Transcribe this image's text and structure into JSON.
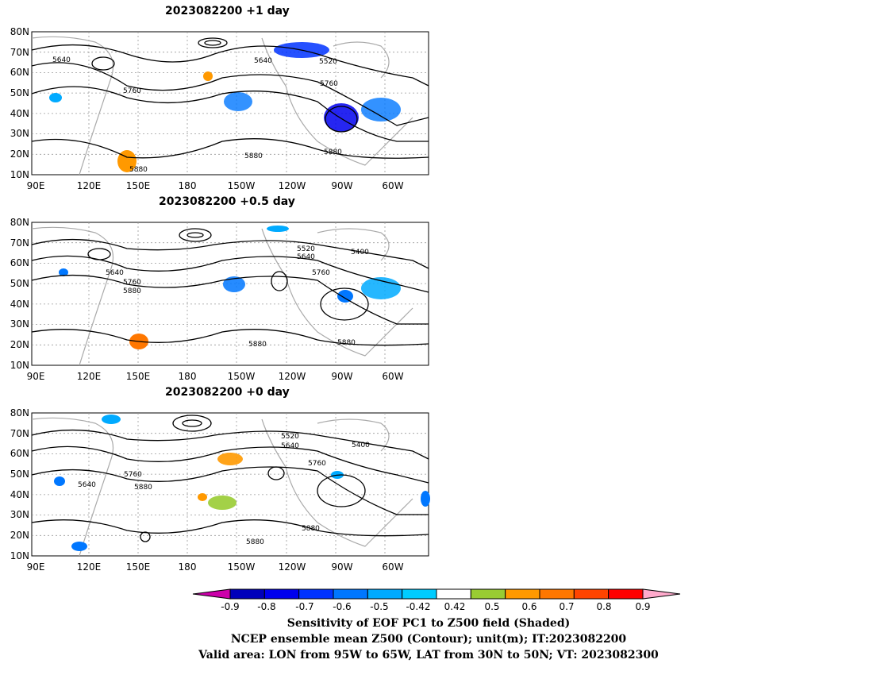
{
  "panels": [
    {
      "title": "2023082200  +1 day",
      "contour_labels": [
        "5640",
        "5640",
        "5520",
        "5760",
        "5760",
        "5880",
        "5880",
        "5880"
      ]
    },
    {
      "title": "2023082200  +0.5 day",
      "contour_labels": [
        "5520",
        "5640",
        "5400",
        "5640",
        "5760",
        "5880",
        "5760",
        "5880",
        "5880"
      ]
    },
    {
      "title": "2023082200  +0 day",
      "contour_labels": [
        "5520",
        "5640",
        "5400",
        "5760",
        "5640",
        "5760",
        "5880",
        "5880",
        "5880"
      ]
    }
  ],
  "axes": {
    "y_ticks": [
      "80N",
      "70N",
      "60N",
      "50N",
      "40N",
      "30N",
      "20N",
      "10N"
    ],
    "x_ticks": [
      "90E",
      "120E",
      "150E",
      "180",
      "150W",
      "120W",
      "90W",
      "60W"
    ]
  },
  "colorbar": {
    "ticks": [
      "-0.9",
      "-0.8",
      "-0.7",
      "-0.6",
      "-0.5",
      "-0.42",
      "0.42",
      "0.5",
      "0.6",
      "0.7",
      "0.8",
      "0.9"
    ],
    "colors": [
      "#cc00aa",
      "#0000bb",
      "#0000ee",
      "#0033ff",
      "#0077ff",
      "#00aaff",
      "#00ccff",
      "#ffffff",
      "#99cc33",
      "#ff9900",
      "#ff7700",
      "#ff4400",
      "#ff0000",
      "#ffaacc"
    ]
  },
  "caption": {
    "line1": "Sensitivity of EOF PC1 to Z500 field (Shaded)",
    "line2": "NCEP ensemble mean Z500 (Contour); unit(m); IT:2023082200",
    "line3": "Valid area: LON from 95W to 65W, LAT from 30N to 50N; VT: 2023082300"
  }
}
